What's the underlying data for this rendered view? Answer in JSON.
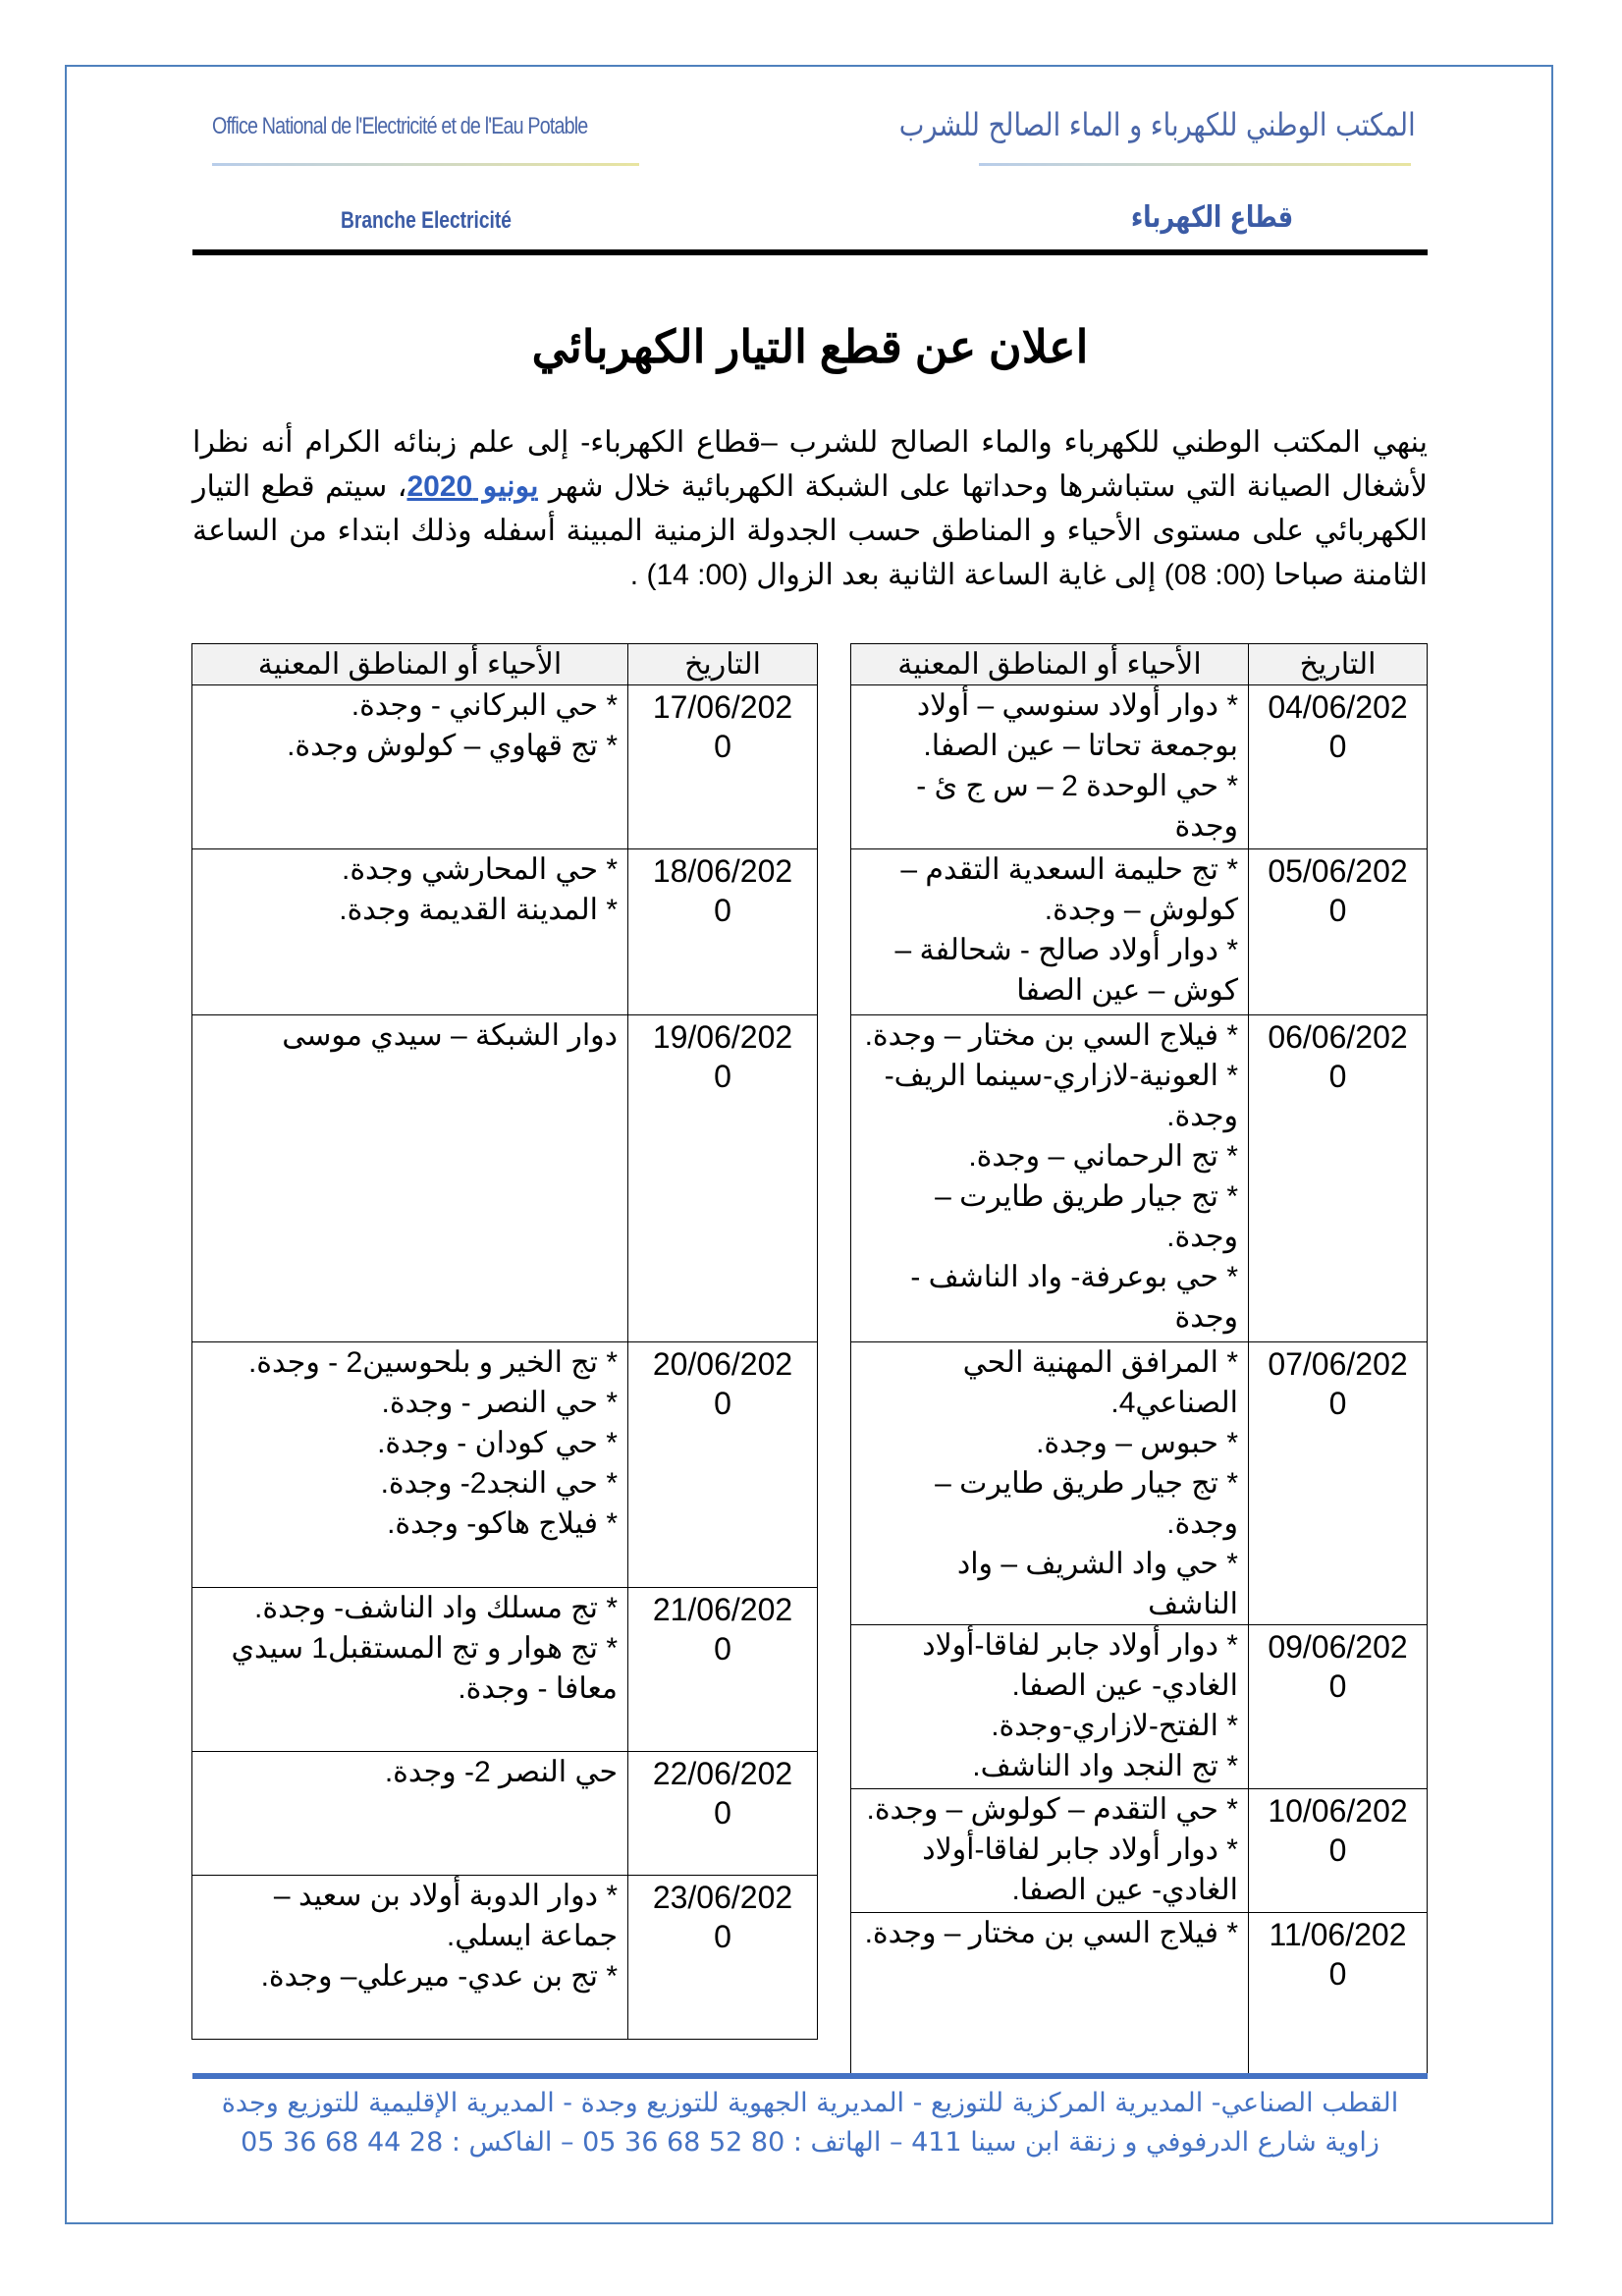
{
  "header": {
    "org_fr": "Office National de l'Electricité et de l'Eau Potable",
    "org_ar": "المكتب الوطني للكهرباء و الماء الصالح للشرب",
    "branch_fr": "Branche Electricité",
    "branch_ar": "قطاع الكهرباء"
  },
  "title": "اعلان عن قطع التيار الكهربائي",
  "paragraph": {
    "before_link": "ينهي المكتب الوطني للكهرباء والماء الصالح للشرب –قطاع الكهرباء- إلى علم زبنائه الكرام أنه نظرا لأشغال الصيانة التي ستباشرها وحداتها على الشبكة الكهربائية خلال شهر ",
    "month_link": "يونيو 2020",
    "after_link": "، سيتم قطع التيار الكهربائي على مستوى الأحياء و المناطق حسب الجدولة الزمنية المبينة أسفله وذلك ابتداء من الساعة الثامنة صباحا (00: 08) إلى غاية الساعة الثانية بعد الزوال (00: 14) ."
  },
  "columns": {
    "date": "التاريخ",
    "areas": "الأحياء أو المناطق المعنية"
  },
  "table_right": [
    {
      "date": "04/06/2020",
      "areas": [
        "* دوار أولاد سنوسي – أولاد بوجمعة تحاتا – عين الصفا.",
        "* حي الوحدة 2 – س ج ئ - وجدة"
      ]
    },
    {
      "date": "05/06/2020",
      "areas": [
        "* تج حليمة السعدية التقدم – كولوش – وجدة.",
        "* دوار أولاد صالح -  شحالفة – كوش – عين الصفا"
      ]
    },
    {
      "date": "06/06/2020",
      "areas": [
        "* فيلاج السي بن مختار – وجدة.",
        "* العونية-لازاري-سينما الريف-وجدة.",
        "* تج الرحماني – وجدة.",
        "* تج جيار طريق طايرت – وجدة.",
        "* حي بوعرفة- واد الناشف - وجدة"
      ]
    },
    {
      "date": "07/06/2020",
      "areas": [
        "* المرافق المهنية الحي الصناعي4.",
        "* حبوس – وجدة.",
        "* تج جيار طريق طايرت – وجدة.",
        "* حي واد الشريف – واد الناشف"
      ]
    },
    {
      "date": "09/06/2020",
      "areas": [
        "* دوار أولاد جابر لفاقا-أولاد الغادي- عين الصفا.",
        "* الفتح-لازاري-وجدة.",
        "* تج النجد واد الناشف."
      ]
    },
    {
      "date": "10/06/2020",
      "areas": [
        "* حي التقدم – كولوش – وجدة.",
        "* دوار أولاد جابر لفاقا-أولاد الغادي- عين الصفا."
      ]
    },
    {
      "date": "11/06/2020",
      "areas": [
        "* فيلاج السي بن مختار – وجدة."
      ]
    }
  ],
  "table_left": [
    {
      "date": "17/06/2020",
      "areas": [
        "* حي البركاني - وجدة.",
        "* تج قهاوي – كولوش وجدة."
      ]
    },
    {
      "date": "18/06/2020",
      "areas": [
        "* حي المحارشي وجدة.",
        "* المدينة القديمة وجدة."
      ]
    },
    {
      "date": "19/06/2020",
      "areas": [
        "دوار الشبكة – سيدي موسى"
      ]
    },
    {
      "date": "20/06/2020",
      "areas": [
        "* تج الخير و بلحوسين2 - وجدة.",
        "* حي النصر - وجدة.",
        "* حي كودان - وجدة.",
        "* حي النجد2- وجدة.",
        "* فيلاج هاكو- وجدة."
      ]
    },
    {
      "date": "21/06/2020",
      "areas": [
        "* تج مسلك واد الناشف- وجدة.",
        "* تج هوار و تج المستقبل1 سيدي معافا - وجدة."
      ]
    },
    {
      "date": "22/06/2020",
      "areas": [
        "حي النصر 2- وجدة."
      ]
    },
    {
      "date": "23/06/2020",
      "areas": [
        "* دوار الدوبة أولاد بن سعيد –جماعة ايسلي.",
        "* تج بن عدي- ميرعلي– وجدة."
      ]
    }
  ],
  "footer": {
    "line1": "القطب الصناعي- المديرية المركزية للتوزيع - المديرية الجهوية للتوزيع وجدة - المديرية الإقليمية للتوزيع وجدة",
    "line2": "زاوية شارع الدرفوفي و زنقة ابن سينا 411 – الهاتف  : 80 52 68 36 05 – الفاكس  : 28 44 68 36 05"
  },
  "colors": {
    "brand_blue": "#4472c4",
    "link": "#2f5fbf"
  }
}
